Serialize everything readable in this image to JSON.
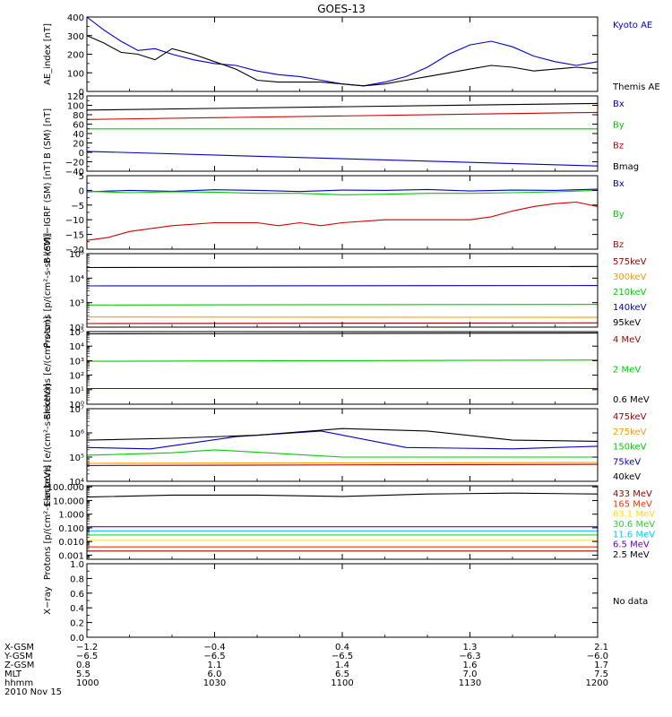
{
  "title": "GOES-13",
  "chart_data": [
    {
      "type": "line",
      "ylabel": "AE_index [nT]",
      "ylim": [
        0,
        400
      ],
      "yscale": "linear",
      "yticks": [
        0,
        100,
        200,
        300,
        400
      ],
      "ytick_labels": [
        "0",
        "100",
        "200",
        "300",
        "400"
      ],
      "series": [
        {
          "name": "Kyoto AE",
          "color": "#0000cc",
          "x": [
            0,
            4,
            8,
            12,
            16,
            20,
            25,
            30,
            35,
            40,
            45,
            50,
            55,
            60,
            65,
            70,
            75,
            80,
            85,
            90,
            95,
            100,
            105,
            110,
            115,
            120
          ],
          "y": [
            400,
            330,
            270,
            220,
            230,
            200,
            170,
            150,
            140,
            110,
            90,
            80,
            60,
            40,
            30,
            50,
            80,
            130,
            200,
            250,
            270,
            240,
            190,
            160,
            140,
            160
          ]
        },
        {
          "name": "Themis AE",
          "color": "#000000",
          "x": [
            0,
            4,
            8,
            12,
            16,
            20,
            25,
            30,
            35,
            40,
            45,
            50,
            55,
            60,
            65,
            70,
            75,
            80,
            85,
            90,
            95,
            100,
            105,
            110,
            115,
            120
          ],
          "y": [
            300,
            260,
            210,
            200,
            170,
            230,
            200,
            160,
            120,
            60,
            50,
            50,
            50,
            40,
            30,
            40,
            60,
            80,
            100,
            120,
            140,
            130,
            110,
            120,
            130,
            120
          ]
        }
      ]
    },
    {
      "type": "line",
      "ylabel": "B (SM) [nT]",
      "ylim": [
        -40,
        120
      ],
      "yscale": "linear",
      "yticks": [
        -40,
        -20,
        0,
        20,
        40,
        60,
        80,
        100,
        120
      ],
      "ytick_labels": [
        "−40",
        "−20",
        "0",
        "20",
        "40",
        "60",
        "80",
        "100",
        "120"
      ],
      "series": [
        {
          "name": "Bx",
          "color": "#0000cc",
          "x": [
            0,
            120
          ],
          "y": [
            2,
            -29
          ]
        },
        {
          "name": "By",
          "color": "#00cc00",
          "x": [
            0,
            120
          ],
          "y": [
            50,
            50
          ]
        },
        {
          "name": "Bz",
          "color": "#cc0000",
          "x": [
            0,
            120
          ],
          "y": [
            70,
            85
          ]
        },
        {
          "name": "Bmag",
          "color": "#000000",
          "x": [
            0,
            120
          ],
          "y": [
            90,
            104
          ]
        }
      ]
    },
    {
      "type": "line",
      "ylabel": "B (SM)−IGRF (SM) [nT]",
      "ylim": [
        -20,
        5
      ],
      "yscale": "linear",
      "yticks": [
        -20,
        -15,
        -10,
        -5,
        0,
        5
      ],
      "ytick_labels": [
        "−20",
        "−15",
        "−10",
        "−5",
        "0",
        "5"
      ],
      "series": [
        {
          "name": "Bx",
          "color": "#0000cc",
          "x": [
            0,
            10,
            20,
            30,
            40,
            50,
            60,
            70,
            80,
            90,
            100,
            110,
            120
          ],
          "y": [
            -0.5,
            0,
            -0.3,
            0.2,
            0,
            -0.4,
            0.1,
            0,
            0.3,
            -0.2,
            0.1,
            0,
            0.4
          ]
        },
        {
          "name": "By",
          "color": "#00cc00",
          "x": [
            0,
            10,
            20,
            30,
            40,
            50,
            60,
            70,
            80,
            90,
            100,
            110,
            120
          ],
          "y": [
            -0.3,
            -0.8,
            -0.5,
            -0.6,
            -1,
            -1,
            -1.5,
            -1.3,
            -1,
            -1,
            -0.8,
            -0.5,
            0
          ]
        },
        {
          "name": "Bz",
          "color": "#cc0000",
          "x": [
            0,
            5,
            10,
            20,
            30,
            40,
            45,
            50,
            55,
            60,
            70,
            80,
            90,
            95,
            100,
            105,
            110,
            115,
            120
          ],
          "y": [
            -17,
            -16,
            -14,
            -12,
            -11,
            -11,
            -12,
            -11,
            -12,
            -11,
            -10,
            -10,
            -10,
            -9,
            -7,
            -5.5,
            -4.5,
            -4,
            -5.5
          ]
        }
      ]
    },
    {
      "type": "line",
      "ylabel": "Protons [p/(cm²-s-sr-keV)]",
      "ylim": [
        100,
        100000
      ],
      "yscale": "log",
      "yticks": [
        100,
        1000,
        10000,
        100000
      ],
      "ytick_labels": [
        "10²",
        "10³",
        "10⁴",
        "10⁵"
      ],
      "series": [
        {
          "name": "575keV",
          "color": "#990000",
          "x": [
            0,
            120
          ],
          "y": [
            140,
            150
          ]
        },
        {
          "name": "300keV",
          "color": "#ff9900",
          "x": [
            0,
            120
          ],
          "y": [
            260,
            250
          ]
        },
        {
          "name": "210keV",
          "color": "#00cc00",
          "x": [
            0,
            120
          ],
          "y": [
            800,
            850
          ]
        },
        {
          "name": "140keV",
          "color": "#0000cc",
          "x": [
            0,
            120
          ],
          "y": [
            4800,
            5000
          ]
        },
        {
          "name": "95keV",
          "color": "#000000",
          "x": [
            0,
            60,
            120
          ],
          "y": [
            27000,
            28000,
            30000
          ]
        }
      ]
    },
    {
      "type": "line",
      "ylabel": "Electrons [e/(cm²-s-sr)]",
      "ylim": [
        1,
        100000
      ],
      "yscale": "log",
      "yticks": [
        1,
        10,
        100,
        1000,
        10000,
        100000
      ],
      "ytick_labels": [
        "10⁰",
        "10¹",
        "10²",
        "10³",
        "10⁴",
        "10⁵"
      ],
      "series": [
        {
          "name": "4 MeV",
          "color": "#990000",
          "x": [
            0,
            120
          ],
          "y": [
            12,
            12
          ]
        },
        {
          "name": "2 MeV",
          "color": "#00cc00",
          "x": [
            0,
            120
          ],
          "y": [
            900,
            1100
          ]
        },
        {
          "name": "0.6 MeV",
          "color": "#000000",
          "x": [
            0,
            120
          ],
          "y": [
            70000,
            80000
          ]
        }
      ]
    },
    {
      "type": "line",
      "ylabel": "Electrons [e/(cm²-s-sr-keV)]",
      "ylim": [
        10000,
        10000000
      ],
      "yscale": "log",
      "yticks": [
        10000,
        100000,
        1000000,
        10000000
      ],
      "ytick_labels": [
        "10⁴",
        "10⁵",
        "10⁶",
        "10⁷"
      ],
      "series": [
        {
          "name": "475keV",
          "color": "#990000",
          "x": [
            0,
            120
          ],
          "y": [
            45000,
            50000
          ]
        },
        {
          "name": "275keV",
          "color": "#ff9900",
          "x": [
            0,
            120
          ],
          "y": [
            55000,
            60000
          ]
        },
        {
          "name": "150keV",
          "color": "#00cc00",
          "x": [
            0,
            20,
            30,
            60,
            90,
            120
          ],
          "y": [
            120000,
            150000,
            200000,
            100000,
            100000,
            100000
          ]
        },
        {
          "name": "75keV",
          "color": "#0000cc",
          "x": [
            0,
            15,
            35,
            55,
            75,
            100,
            120
          ],
          "y": [
            250000,
            220000,
            700000,
            1200000,
            250000,
            220000,
            280000
          ]
        },
        {
          "name": "40keV",
          "color": "#000000",
          "x": [
            0,
            20,
            40,
            60,
            80,
            100,
            120
          ],
          "y": [
            500000,
            600000,
            800000,
            1500000,
            1200000,
            500000,
            450000
          ]
        }
      ]
    },
    {
      "type": "line",
      "ylabel": "Protons [p/(cm²-s-sr-keV)]",
      "ylim": [
        0.0005,
        120
      ],
      "yscale": "log",
      "yticks": [
        0.001,
        0.01,
        0.1,
        1,
        10,
        100
      ],
      "ytick_labels": [
        "0.001",
        "0.010",
        "0.100",
        "1.000",
        "10.000",
        "100.000"
      ],
      "series": [
        {
          "name": "433 MeV",
          "color": "#990000",
          "x": [
            0,
            120
          ],
          "y": [
            0.002,
            0.002
          ]
        },
        {
          "name": "165 MeV",
          "color": "#ff3300",
          "x": [
            0,
            120
          ],
          "y": [
            0.004,
            0.004
          ]
        },
        {
          "name": "63.1 MeV",
          "color": "#ffdd00",
          "x": [
            0,
            120
          ],
          "y": [
            0.012,
            0.012
          ]
        },
        {
          "name": "30.6 MeV",
          "color": "#33cc33",
          "x": [
            0,
            120
          ],
          "y": [
            0.03,
            0.03
          ]
        },
        {
          "name": "11.6 MeV",
          "color": "#00ccff",
          "x": [
            0,
            120
          ],
          "y": [
            0.06,
            0.06
          ]
        },
        {
          "name": "6.5 MeV",
          "color": "#6600cc",
          "x": [
            0,
            120
          ],
          "y": [
            0.12,
            0.12
          ]
        },
        {
          "name": "2.5 MeV",
          "color": "#000000",
          "x": [
            0,
            20,
            40,
            60,
            80,
            100,
            120
          ],
          "y": [
            18,
            25,
            25,
            20,
            30,
            35,
            30
          ]
        }
      ]
    },
    {
      "type": "line",
      "ylabel": "X−ray",
      "ylim": [
        0,
        1
      ],
      "yscale": "linear",
      "yticks": [
        0,
        0.2,
        0.4,
        0.6,
        0.8,
        1.0
      ],
      "ytick_labels": [
        "0.0",
        "0.2",
        "0.4",
        "0.6",
        "0.8",
        "1.0"
      ],
      "note": "No data",
      "series": []
    }
  ],
  "x_axis": {
    "xlim": [
      0,
      120
    ],
    "ticks": [
      0,
      30,
      60,
      90,
      120
    ],
    "rows": [
      {
        "label": "X-GSM",
        "values": [
          "−1.2",
          "−0.4",
          "0.4",
          "1.3",
          "2.1"
        ]
      },
      {
        "label": "Y-GSM",
        "values": [
          "−6.5",
          "−6.5",
          "−6.5",
          "−6.3",
          "−6.0"
        ]
      },
      {
        "label": "Z-GSM",
        "values": [
          "0.8",
          "1.1",
          "1.4",
          "1.6",
          "1.7"
        ]
      },
      {
        "label": "MLT",
        "values": [
          "5.5",
          "6.0",
          "6.5",
          "7.0",
          "7.5"
        ]
      },
      {
        "label": "hhmm",
        "values": [
          "1000",
          "1030",
          "1100",
          "1130",
          "1200"
        ]
      }
    ],
    "date": "2010 Nov 15"
  }
}
